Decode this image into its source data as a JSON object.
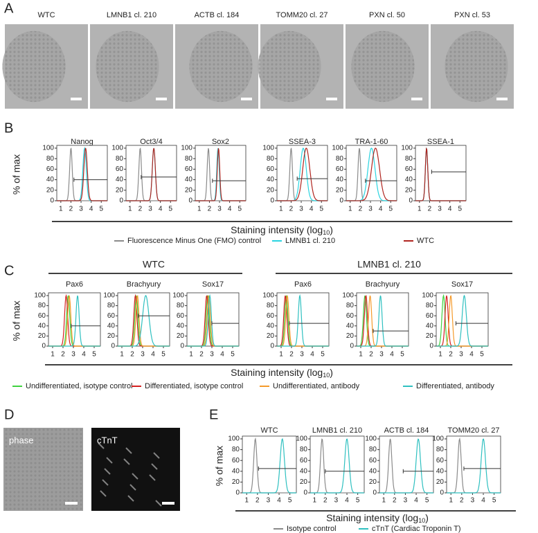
{
  "panel_labels": [
    "A",
    "B",
    "C",
    "D",
    "E"
  ],
  "figure_a": {
    "images": [
      "WTC",
      "LMNB1  cl. 210",
      "ACTB cl. 184",
      "TOMM20 cl. 27",
      "PXN cl. 50",
      "PXN cl. 53"
    ]
  },
  "figure_d": {
    "images": [
      "phase",
      "cTnT"
    ]
  },
  "chart_data": [
    {
      "type": "histogram-overlay",
      "ylabel": "% of max",
      "xlabel": [
        "Staining intensity (log",
        "10",
        ")"
      ],
      "xlim": [
        0.6,
        5.6
      ],
      "ylim": [
        0,
        100
      ],
      "xticks": [
        1,
        2,
        3,
        4,
        5
      ],
      "yticks": [
        0,
        20,
        40,
        60,
        80,
        100
      ],
      "series": [
        {
          "name": "Fluorescence Minus One (FMO) control",
          "color": "#8a8a8a"
        },
        {
          "name": "LMNB1 cl.  210",
          "color": "#2ad4e0"
        },
        {
          "name": "WTC",
          "color": "#b0241e"
        }
      ],
      "panels": [
        {
          "title": "Nanog",
          "curves": [
            {
              "peak": 2.0,
              "width": 0.13
            },
            {
              "peak": 3.35,
              "width": 0.17
            },
            {
              "peak": 3.45,
              "width": 0.17
            }
          ],
          "gate": {
            "x": [
              2.3,
              5.6
            ],
            "y": 40
          }
        },
        {
          "title": "Oct3/4",
          "curves": [
            {
              "peak": 2.0,
              "width": 0.13
            },
            {
              "peak": 3.35,
              "width": 0.15
            },
            {
              "peak": 3.35,
              "width": 0.15
            }
          ],
          "gate": {
            "x": [
              2.1,
              5.6
            ],
            "y": 45
          }
        },
        {
          "title": "Sox2",
          "curves": [
            {
              "peak": 1.9,
              "width": 0.12
            },
            {
              "peak": 2.85,
              "width": 0.12
            },
            {
              "peak": 2.9,
              "width": 0.12
            }
          ],
          "gate": {
            "x": [
              2.3,
              5.6
            ],
            "y": 38
          }
        },
        {
          "title": "SSEA-3",
          "curves": [
            {
              "peak": 2.0,
              "width": 0.13
            },
            {
              "peak": 3.2,
              "width": 0.3
            },
            {
              "peak": 3.5,
              "width": 0.35
            }
          ],
          "gate": {
            "x": [
              2.6,
              5.6
            ],
            "y": 42
          }
        },
        {
          "title": "TRA-1-60",
          "curves": [
            {
              "peak": 1.9,
              "width": 0.13
            },
            {
              "peak": 3.1,
              "width": 0.35
            },
            {
              "peak": 3.5,
              "width": 0.4
            }
          ],
          "gate": {
            "x": [
              2.5,
              5.6
            ],
            "y": 38
          }
        },
        {
          "title": "SSEA-1",
          "curves": [
            {
              "peak": 1.7,
              "width": 0.12
            },
            {
              "peak": 1.7,
              "width": 0.12
            },
            {
              "peak": 1.7,
              "width": 0.12
            }
          ],
          "gate": {
            "x": [
              2.2,
              5.6
            ],
            "y": 55
          }
        }
      ]
    },
    {
      "type": "histogram-overlay",
      "ylabel": "% of max",
      "xlabel": [
        "Staining intensity (log",
        "10",
        ")"
      ],
      "groups": [
        {
          "title": "WTC",
          "panels": [
            0,
            1,
            2
          ]
        },
        {
          "title": "LMNB1 cl. 210",
          "panels": [
            3,
            4,
            5
          ]
        }
      ],
      "xlim": [
        0.6,
        5.6
      ],
      "ylim": [
        0,
        100
      ],
      "xticks": [
        1,
        2,
        3,
        4,
        5
      ],
      "yticks": [
        0,
        20,
        40,
        60,
        80,
        100
      ],
      "series": [
        {
          "name": "Undifferentiated, isotype control",
          "color": "#3fd23f"
        },
        {
          "name": "Differentiated, isotype control",
          "color": "#d42020"
        },
        {
          "name": "Undifferentiated, antibody",
          "color": "#f59a2a"
        },
        {
          "name": "Differentiated, antibody",
          "color": "#2ec0c0"
        }
      ],
      "panels": [
        {
          "title": "Pax6",
          "curves": [
            {
              "peak": 2.5,
              "width": 0.15
            },
            {
              "peak": 2.3,
              "width": 0.15
            },
            {
              "peak": 2.6,
              "width": 0.15
            },
            {
              "peak": 3.4,
              "width": 0.15
            }
          ],
          "gate": {
            "x": [
              2.8,
              5.6
            ],
            "y": 40
          }
        },
        {
          "title": "Brachyury",
          "curves": [
            {
              "peak": 2.4,
              "width": 0.15
            },
            {
              "peak": 2.3,
              "width": 0.15
            },
            {
              "peak": 2.5,
              "width": 0.15
            },
            {
              "peak": 3.3,
              "width": 0.3
            }
          ],
          "gate": {
            "x": [
              2.6,
              5.6
            ],
            "y": 60
          }
        },
        {
          "title": "Sox17",
          "curves": [
            {
              "peak": 2.6,
              "width": 0.15
            },
            {
              "peak": 2.5,
              "width": 0.15
            },
            {
              "peak": 2.7,
              "width": 0.15
            },
            {
              "peak": 2.8,
              "width": 0.15
            }
          ],
          "gate": {
            "x": [
              3.0,
              5.6
            ],
            "y": 45
          }
        },
        {
          "title": "Pax6",
          "curves": [
            {
              "peak": 1.5,
              "width": 0.15
            },
            {
              "peak": 1.4,
              "width": 0.15
            },
            {
              "peak": 1.6,
              "width": 0.15
            },
            {
              "peak": 2.8,
              "width": 0.15
            }
          ],
          "gate": {
            "x": [
              1.8,
              5.6
            ],
            "y": 45
          }
        },
        {
          "title": "Brachyury",
          "curves": [
            {
              "peak": 1.4,
              "width": 0.15
            },
            {
              "peak": 1.5,
              "width": 0.15
            },
            {
              "peak": 1.9,
              "width": 0.15
            },
            {
              "peak": 2.9,
              "width": 0.15
            }
          ],
          "gate": {
            "x": [
              2.2,
              5.6
            ],
            "y": 30
          }
        },
        {
          "title": "Sox17",
          "curves": [
            {
              "peak": 1.3,
              "width": 0.15
            },
            {
              "peak": 1.6,
              "width": 0.15
            },
            {
              "peak": 2.0,
              "width": 0.15
            },
            {
              "peak": 3.3,
              "width": 0.2
            }
          ],
          "gate": {
            "x": [
              2.5,
              5.6
            ],
            "y": 45
          }
        }
      ]
    },
    {
      "type": "histogram-overlay",
      "ylabel": "% of max",
      "xlabel": [
        "Staining intensity (log",
        "10",
        ")"
      ],
      "xlim": [
        0.6,
        5.6
      ],
      "ylim": [
        0,
        100
      ],
      "xticks": [
        1,
        2,
        3,
        4,
        5
      ],
      "yticks": [
        0,
        20,
        40,
        60,
        80,
        100
      ],
      "series": [
        {
          "name": "Isotype control",
          "color": "#8a8a8a"
        },
        {
          "name": "cTnT (Cardiac Troponin T)",
          "color": "#2ec0c0"
        }
      ],
      "panels": [
        {
          "title": "WTC",
          "curves": [
            {
              "peak": 1.8,
              "width": 0.15
            },
            {
              "peak": 4.3,
              "width": 0.2
            }
          ],
          "gate": {
            "x": [
              2.1,
              5.6
            ],
            "y": 45
          }
        },
        {
          "title": "LMNB1 cl. 210",
          "curves": [
            {
              "peak": 1.7,
              "width": 0.15
            },
            {
              "peak": 4.0,
              "width": 0.2
            }
          ],
          "gate": {
            "x": [
              2.0,
              5.6
            ],
            "y": 40
          }
        },
        {
          "title": "ACTB cl. 184",
          "curves": [
            {
              "peak": 1.6,
              "width": 0.15
            },
            {
              "peak": 4.2,
              "width": 0.2
            }
          ],
          "gate": {
            "x": [
              2.8,
              5.6
            ],
            "y": 40
          }
        },
        {
          "title": "TOMM20 cl. 27",
          "curves": [
            {
              "peak": 1.8,
              "width": 0.15
            },
            {
              "peak": 4.0,
              "width": 0.2
            }
          ],
          "gate": {
            "x": [
              2.2,
              5.6
            ],
            "y": 45
          }
        }
      ]
    }
  ]
}
